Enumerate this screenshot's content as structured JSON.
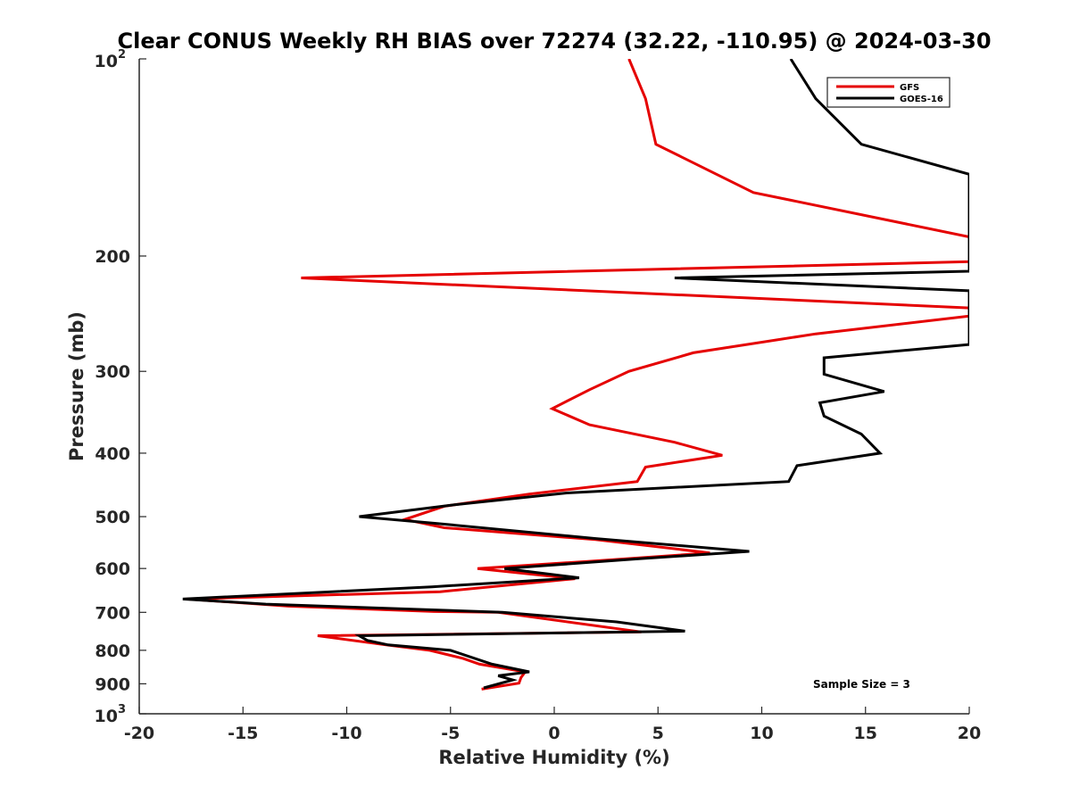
{
  "chart_data": {
    "type": "line",
    "title": "Clear CONUS Weekly RH BIAS over 72274 (32.22, -110.95) @ 2024-03-30",
    "xlabel": "Relative Humidity (%)",
    "ylabel": "Pressure (mb)",
    "xlim": [
      -20,
      20
    ],
    "ylim": [
      100,
      1000
    ],
    "y_scale": "log",
    "y_reversed": true,
    "grid": false,
    "legend_position": "top-right",
    "x_ticks": [
      "-20",
      "-15",
      "-10",
      "-5",
      "0",
      "5",
      "10",
      "15",
      "20"
    ],
    "y_ticks": [
      {
        "value": 100,
        "base": "10",
        "exp": "2"
      },
      {
        "value": 200,
        "label": "200"
      },
      {
        "value": 300,
        "label": "300"
      },
      {
        "value": 400,
        "label": "400"
      },
      {
        "value": 500,
        "label": "500"
      },
      {
        "value": 600,
        "label": "600"
      },
      {
        "value": 700,
        "label": "700"
      },
      {
        "value": 800,
        "label": "800"
      },
      {
        "value": 900,
        "label": "900"
      },
      {
        "value": 1000,
        "base": "10",
        "exp": "3"
      }
    ],
    "annotation": "Sample Size = 3",
    "series": [
      {
        "name": "GFS",
        "color": "#e50000",
        "points": [
          [
            3.6,
            100
          ],
          [
            4.4,
            115
          ],
          [
            4.9,
            135
          ],
          [
            9.6,
            160
          ],
          [
            20.0,
            187
          ],
          [
            20.0,
            204
          ],
          [
            -12.2,
            216
          ],
          [
            20.0,
            240
          ],
          [
            20.0,
            247
          ],
          [
            12.6,
            263
          ],
          [
            6.7,
            281
          ],
          [
            3.6,
            300
          ],
          [
            1.7,
            320
          ],
          [
            -0.1,
            342
          ],
          [
            1.7,
            362
          ],
          [
            5.8,
            385
          ],
          [
            8.1,
            403
          ],
          [
            4.4,
            420
          ],
          [
            4.0,
            442
          ],
          [
            -1.2,
            462
          ],
          [
            -5.3,
            482
          ],
          [
            -7.2,
            505
          ],
          [
            -5.3,
            520
          ],
          [
            2.0,
            542
          ],
          [
            7.5,
            568
          ],
          [
            1.7,
            585
          ],
          [
            -3.7,
            600
          ],
          [
            1.0,
            622
          ],
          [
            -5.5,
            651
          ],
          [
            -17.7,
            668
          ],
          [
            -12.8,
            685
          ],
          [
            -5.8,
            698
          ],
          [
            -2.7,
            700
          ],
          [
            4.2,
            750
          ],
          [
            -11.4,
            760
          ],
          [
            -8.1,
            785
          ],
          [
            -6.0,
            800
          ],
          [
            -4.4,
            823
          ],
          [
            -3.6,
            840
          ],
          [
            -1.4,
            863
          ],
          [
            -1.6,
            880
          ],
          [
            -1.7,
            898
          ],
          [
            -3.5,
            917
          ]
        ]
      },
      {
        "name": "GOES-16",
        "color": "#000000",
        "points": [
          [
            11.4,
            100
          ],
          [
            12.6,
            115
          ],
          [
            14.8,
            135
          ],
          [
            20.0,
            150
          ],
          [
            20.0,
            204
          ],
          [
            20.0,
            211
          ],
          [
            5.8,
            216
          ],
          [
            20.0,
            226
          ],
          [
            20.0,
            273
          ],
          [
            13.0,
            286
          ],
          [
            13.0,
            303
          ],
          [
            15.9,
            322
          ],
          [
            12.8,
            335
          ],
          [
            13.0,
            351
          ],
          [
            14.8,
            374
          ],
          [
            15.7,
            400
          ],
          [
            11.7,
            418
          ],
          [
            11.3,
            442
          ],
          [
            0.6,
            460
          ],
          [
            -4.9,
            480
          ],
          [
            -9.4,
            500
          ],
          [
            -5.7,
            512
          ],
          [
            2.0,
            540
          ],
          [
            9.4,
            565
          ],
          [
            4.0,
            580
          ],
          [
            -2.4,
            600
          ],
          [
            1.2,
            620
          ],
          [
            -5.9,
            640
          ],
          [
            -17.9,
            668
          ],
          [
            -13.9,
            680
          ],
          [
            -2.5,
            700
          ],
          [
            3.0,
            724
          ],
          [
            6.3,
            748
          ],
          [
            -9.4,
            760
          ],
          [
            -9.0,
            773
          ],
          [
            -8.0,
            785
          ],
          [
            -5.0,
            800
          ],
          [
            -3.0,
            840
          ],
          [
            -1.2,
            863
          ],
          [
            -2.7,
            875
          ],
          [
            -2.0,
            888
          ],
          [
            -3.4,
            913
          ]
        ]
      }
    ]
  }
}
